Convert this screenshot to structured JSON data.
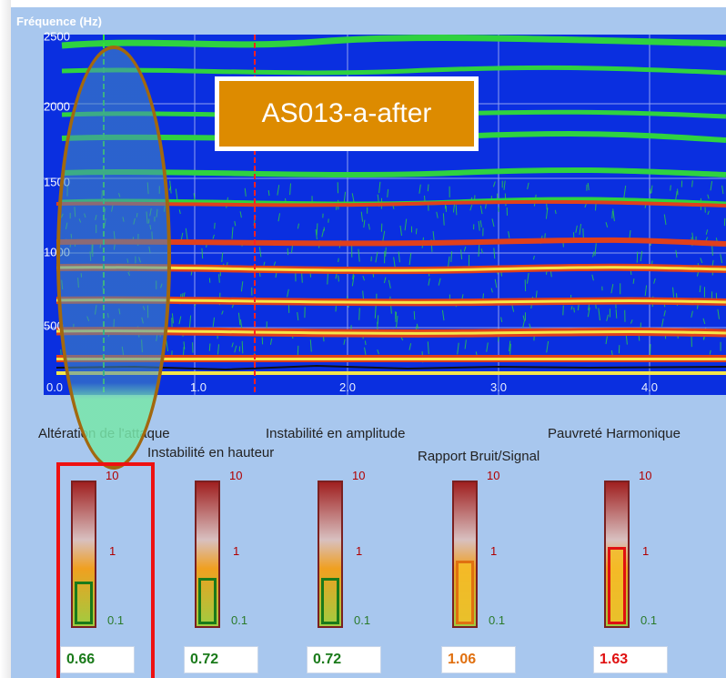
{
  "spectrogram": {
    "axis_title": "Fréquence (Hz)",
    "y_ticks": [
      "2500",
      "2000",
      "1500",
      "1000",
      "500"
    ],
    "x_ticks": [
      "0.0",
      "1.0",
      "2.0",
      "3.0",
      "4.0"
    ],
    "colors": {
      "background": "#0a2fe0",
      "band_green": "#39c84a",
      "band_red": "#e0401c",
      "band_yellow": "#f5e64a",
      "marker_red": "#ff2020"
    }
  },
  "file_label": "AS013-a-after",
  "criteria": [
    {
      "label": "Altération de l'attaque",
      "value": "0.66",
      "value_color": "#1a7a1a",
      "level": 0.3
    },
    {
      "label": "Instabilité en hauteur",
      "value": "0.72",
      "value_color": "#1a7a1a",
      "level": 0.32
    },
    {
      "label": "Instabilité en amplitude",
      "value": "0.72",
      "value_color": "#1a7a1a",
      "level": 0.32
    },
    {
      "label": "Rapport Bruit/Signal",
      "value": "1.06",
      "value_color": "#e07010",
      "level": 0.44
    },
    {
      "label": "Pauvreté Harmonique",
      "value": "1.63",
      "value_color": "#e01010",
      "level": 0.54
    }
  ],
  "scale_ticks": {
    "top": "10",
    "mid": "1",
    "bottom": "0.1"
  }
}
